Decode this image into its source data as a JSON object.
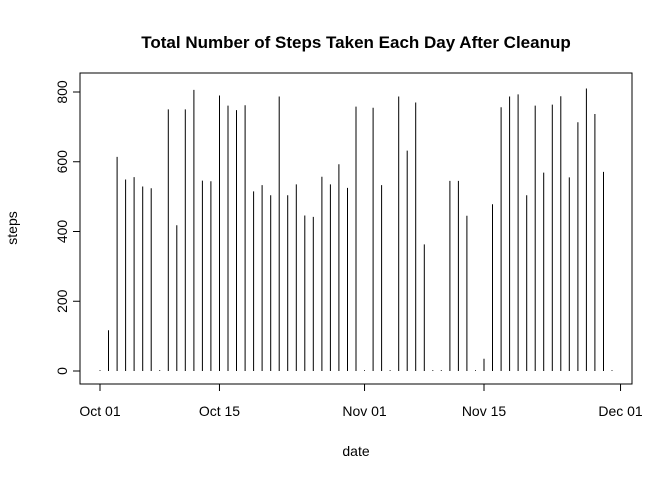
{
  "chart_data": {
    "type": "bar",
    "title": "Total Number of Steps Taken Each Day After Cleanup",
    "xlabel": "date",
    "ylabel": "steps",
    "x_axis_type": "date",
    "x": [
      "2012-10-01",
      "2012-10-02",
      "2012-10-03",
      "2012-10-04",
      "2012-10-05",
      "2012-10-06",
      "2012-10-07",
      "2012-10-08",
      "2012-10-09",
      "2012-10-10",
      "2012-10-11",
      "2012-10-12",
      "2012-10-13",
      "2012-10-14",
      "2012-10-15",
      "2012-10-16",
      "2012-10-17",
      "2012-10-18",
      "2012-10-19",
      "2012-10-20",
      "2012-10-21",
      "2012-10-22",
      "2012-10-23",
      "2012-10-24",
      "2012-10-25",
      "2012-10-26",
      "2012-10-27",
      "2012-10-28",
      "2012-10-29",
      "2012-10-30",
      "2012-10-31",
      "2012-11-01",
      "2012-11-02",
      "2012-11-03",
      "2012-11-04",
      "2012-11-05",
      "2012-11-06",
      "2012-11-07",
      "2012-11-08",
      "2012-11-09",
      "2012-11-10",
      "2012-11-11",
      "2012-11-12",
      "2012-11-13",
      "2012-11-14",
      "2012-11-15",
      "2012-11-16",
      "2012-11-17",
      "2012-11-18",
      "2012-11-19",
      "2012-11-20",
      "2012-11-21",
      "2012-11-22",
      "2012-11-23",
      "2012-11-24",
      "2012-11-25",
      "2012-11-26",
      "2012-11-27",
      "2012-11-28",
      "2012-11-29",
      "2012-11-30"
    ],
    "values": [
      0,
      117,
      614,
      549,
      556,
      529,
      524,
      0,
      750,
      418,
      750,
      806,
      546,
      544,
      790,
      761,
      748,
      762,
      515,
      533,
      504,
      787,
      504,
      535,
      446,
      442,
      557,
      535,
      593,
      525,
      758,
      0,
      755,
      533,
      0,
      787,
      632,
      770,
      363,
      0,
      0,
      545,
      545,
      445,
      0,
      35,
      478,
      756,
      787,
      793,
      504,
      761,
      569,
      764,
      788,
      555,
      713,
      810,
      737,
      571,
      0
    ],
    "xlim": [
      "2012-10-01",
      "2012-11-30"
    ],
    "ylim": [
      0,
      810
    ],
    "x_ticks": [
      {
        "date": "2012-10-01",
        "label": "Oct 01"
      },
      {
        "date": "2012-10-15",
        "label": "Oct 15"
      },
      {
        "date": "2012-11-01",
        "label": "Nov 01"
      },
      {
        "date": "2012-11-15",
        "label": "Nov 15"
      },
      {
        "date": "2012-12-01",
        "label": "Dec 01"
      }
    ],
    "y_ticks": [
      0,
      200,
      400,
      600,
      800
    ],
    "y_tick_labels": [
      "0",
      "200",
      "400",
      "600",
      "800"
    ],
    "grid": false,
    "legend": "none",
    "bar_color": "#000000"
  }
}
